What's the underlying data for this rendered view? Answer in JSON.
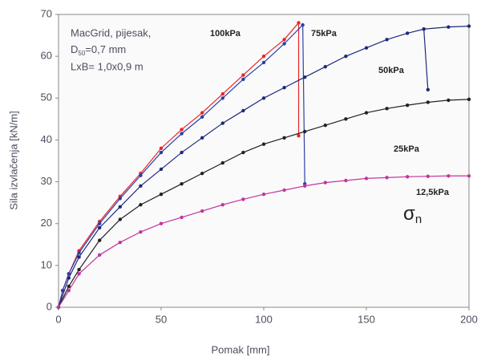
{
  "chart_data": {
    "type": "line",
    "xlabel": "Pomak [mm]",
    "ylabel": "Sila izvlačenja [kN/m]",
    "xlim": [
      0,
      200
    ],
    "xticks": [
      0,
      50,
      100,
      150,
      200
    ],
    "ylim": [
      0,
      70
    ],
    "yticks": [
      0,
      10,
      20,
      30,
      40,
      50,
      60,
      70
    ],
    "grid": false,
    "annotations": [
      "MacGrid, pijesak,",
      "D",
      "50",
      "=0,7 mm",
      "LxB= 1,0x0,9 m",
      "σ",
      "n"
    ],
    "series": [
      {
        "name": "100kPa",
        "color": "#e8262a",
        "x": [
          0,
          2,
          5,
          10,
          20,
          30,
          40,
          50,
          60,
          70,
          80,
          90,
          100,
          110,
          117,
          117
        ],
        "values": [
          0,
          4,
          8,
          13.5,
          20.5,
          26.5,
          32,
          38,
          42.5,
          46.5,
          51,
          55.5,
          60,
          64,
          68,
          41
        ]
      },
      {
        "name": "75kPa",
        "color": "#2b3fa8",
        "x": [
          0,
          2,
          5,
          10,
          20,
          30,
          40,
          50,
          60,
          70,
          80,
          90,
          100,
          110,
          119,
          120
        ],
        "values": [
          0,
          4,
          8,
          13,
          20,
          26,
          31.5,
          37,
          41.5,
          45.5,
          50,
          54.5,
          58.5,
          63,
          67.5,
          29.5
        ]
      },
      {
        "name": "50kPa",
        "color": "#1f2a7a",
        "x": [
          0,
          5,
          10,
          20,
          30,
          40,
          50,
          60,
          70,
          80,
          90,
          100,
          110,
          120,
          130,
          140,
          150,
          160,
          170,
          178,
          180,
          180,
          178,
          190,
          200
        ],
        "values": [
          0,
          7,
          12,
          19,
          24,
          29,
          33,
          37,
          40.5,
          44,
          47,
          50,
          52.5,
          55,
          57.5,
          60,
          62,
          64,
          65.5,
          66.5,
          52,
          null,
          66.5,
          67,
          67.2
        ]
      },
      {
        "name": "25kPa",
        "color": "#222222",
        "x": [
          0,
          5,
          10,
          20,
          30,
          40,
          50,
          60,
          70,
          80,
          90,
          100,
          110,
          120,
          130,
          140,
          150,
          160,
          170,
          180,
          190,
          200
        ],
        "values": [
          0,
          5,
          9,
          16,
          21,
          24.5,
          27,
          29.5,
          32,
          34.5,
          37,
          39,
          40.5,
          42,
          43.5,
          45,
          46.5,
          47.5,
          48.3,
          49,
          49.5,
          49.7
        ]
      },
      {
        "name": "12,5kPa",
        "color": "#c2359f",
        "x": [
          0,
          5,
          10,
          20,
          30,
          40,
          50,
          60,
          70,
          80,
          90,
          100,
          110,
          120,
          130,
          140,
          150,
          160,
          170,
          180,
          190,
          200
        ],
        "values": [
          0,
          4,
          8,
          12.5,
          15.5,
          18,
          20,
          21.5,
          23,
          24.5,
          25.8,
          27,
          28,
          29,
          29.8,
          30.3,
          30.8,
          31,
          31.2,
          31.3,
          31.4,
          31.4
        ]
      }
    ]
  }
}
